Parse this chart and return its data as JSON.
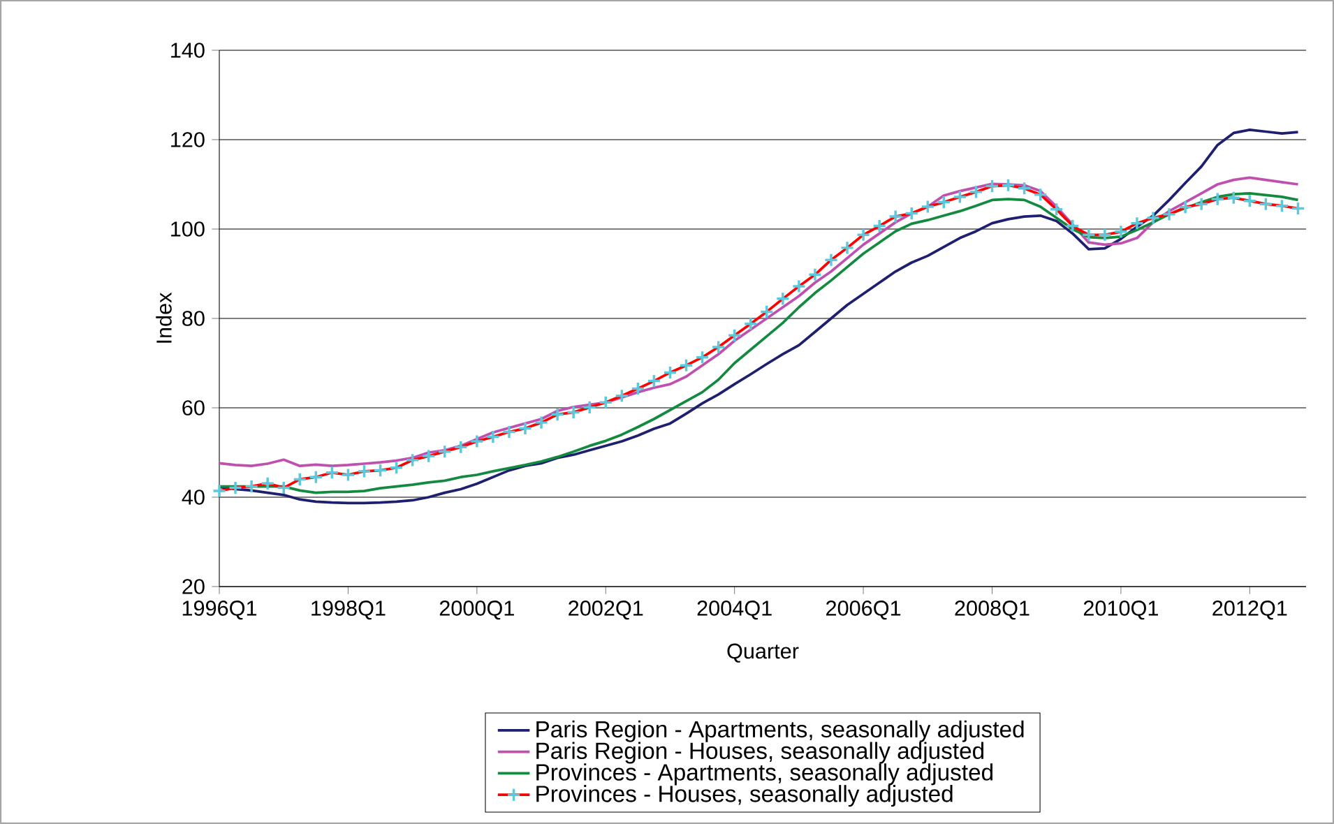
{
  "chart_data": {
    "type": "line",
    "xlabel": "Quarter",
    "ylabel": "Index",
    "categories": [
      "1996Q1",
      null,
      null,
      null,
      null,
      null,
      null,
      null,
      "1998Q1",
      null,
      null,
      null,
      null,
      null,
      null,
      null,
      "2000Q1",
      null,
      null,
      null,
      null,
      null,
      null,
      null,
      "2002Q1",
      null,
      null,
      null,
      null,
      null,
      null,
      null,
      "2004Q1",
      null,
      null,
      null,
      null,
      null,
      null,
      null,
      "2006Q1",
      null,
      null,
      null,
      null,
      null,
      null,
      null,
      "2008Q1",
      null,
      null,
      null,
      null,
      null,
      null,
      null,
      "2010Q1",
      null,
      null,
      null,
      null,
      null,
      null,
      null,
      "2012Q1",
      null,
      null,
      null
    ],
    "ylim": [
      20,
      140
    ],
    "yticks": [
      20,
      40,
      60,
      80,
      100,
      120,
      140
    ],
    "grid": "y",
    "legend": "bottom",
    "series": [
      {
        "name": "Paris Region - Apartments, seasonally adjusted",
        "color": "#1f1f70",
        "values": [
          42.3,
          41.8,
          41.5,
          41,
          40.5,
          39.5,
          39,
          38.8,
          38.7,
          38.7,
          38.8,
          39,
          39.3,
          40,
          41,
          41.8,
          43,
          44.5,
          46,
          47,
          47.6,
          48.8,
          49.5,
          50.5,
          51.5,
          52.5,
          53.8,
          55.3,
          56.5,
          58.7,
          61,
          63,
          65.3,
          67.5,
          69.8,
          72,
          74,
          77,
          80,
          83,
          85.5,
          88,
          90.5,
          92.5,
          94,
          96,
          98,
          99.5,
          101.3,
          102.2,
          102.8,
          103,
          101.8,
          99,
          95.5,
          95.7,
          97.8,
          100.5,
          103,
          106.5,
          110.3,
          114,
          118.8,
          121.5,
          122.2,
          121.8,
          121.4,
          121.7
        ]
      },
      {
        "name": "Paris Region - Houses, seasonally adjusted",
        "color": "#c050b0",
        "values": [
          47.6,
          47.2,
          47,
          47.5,
          48.4,
          47,
          47.3,
          47,
          47.2,
          47.5,
          47.8,
          48.2,
          48.8,
          50,
          50.5,
          51.5,
          53,
          54.5,
          55.5,
          56.5,
          57.5,
          59.3,
          60.2,
          60.7,
          61.2,
          62.3,
          63.5,
          64.5,
          65.3,
          67,
          69.5,
          72,
          75,
          77.5,
          80,
          82.5,
          85,
          88,
          90.5,
          93.5,
          96.5,
          99,
          101.5,
          103.5,
          105,
          107.5,
          108.5,
          109.3,
          110.1,
          110,
          109.8,
          108.5,
          105,
          101,
          97,
          96.5,
          96.8,
          98,
          101.5,
          104,
          106,
          108,
          110,
          111,
          111.5,
          111,
          110.5,
          110
        ]
      },
      {
        "name": "Provinces - Apartments, seasonally adjusted",
        "color": "#138a40",
        "values": [
          42.4,
          42.4,
          42.4,
          42.4,
          42.4,
          41.5,
          41,
          41.2,
          41.2,
          41.4,
          42,
          42.4,
          42.8,
          43.3,
          43.7,
          44.5,
          45,
          45.8,
          46.5,
          47.2,
          48,
          49,
          50.2,
          51.5,
          52.6,
          54,
          55.7,
          57.5,
          59.5,
          61.5,
          63.5,
          66.3,
          70,
          73,
          76,
          79,
          82.5,
          85.7,
          88.5,
          91.5,
          94.5,
          97,
          99.5,
          101.2,
          102,
          103,
          104,
          105.2,
          106.5,
          106.7,
          106.5,
          105,
          102.5,
          100,
          98.2,
          98,
          98.3,
          99.8,
          101.5,
          103.3,
          104.7,
          106,
          107.2,
          107.8,
          108,
          107.6,
          107.2,
          106.5
        ]
      },
      {
        "name": "Provinces - Houses, seasonally adjusted",
        "color": "#ff0000",
        "marker": "cross",
        "values": [
          41.4,
          42.1,
          42.4,
          43.1,
          42.1,
          44,
          44.5,
          45.5,
          45,
          45.8,
          46,
          46.6,
          48.3,
          49.2,
          50.2,
          51.2,
          52.5,
          53.5,
          54.6,
          55.4,
          56.7,
          58.5,
          59,
          60.1,
          61.2,
          62.7,
          64.3,
          66,
          67.9,
          69.5,
          71.3,
          73.6,
          76.2,
          78.8,
          81.5,
          84.4,
          87.2,
          89.8,
          93.1,
          95.8,
          98.7,
          100.7,
          102.8,
          103.5,
          105,
          106,
          107.2,
          108.3,
          109.6,
          109.8,
          109.1,
          107.7,
          104.4,
          100.7,
          98.7,
          98.7,
          99.4,
          101.3,
          102.5,
          103.3,
          104.9,
          105.6,
          106.7,
          107,
          106.3,
          105.6,
          105.2,
          104.6
        ]
      }
    ]
  }
}
